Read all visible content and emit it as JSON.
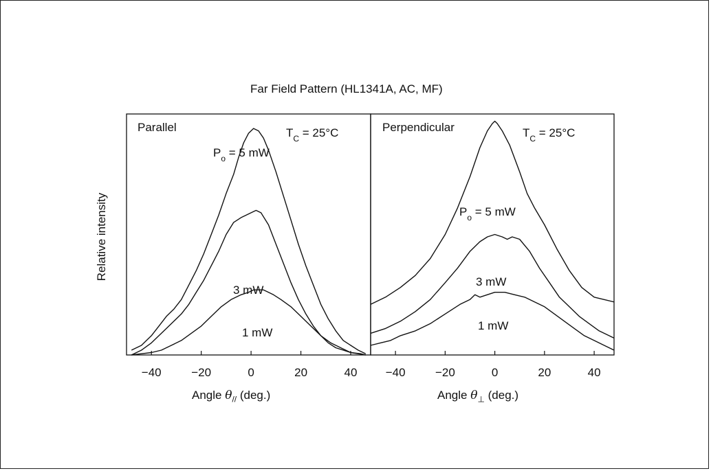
{
  "figure": {
    "title": "Far Field Pattern (HL1341A, AC, MF)",
    "ylabel": "Relative intensity"
  },
  "chart_data": [
    {
      "type": "line",
      "panel_title": "Parallel",
      "temperature_label": "T",
      "temperature_sub": "C",
      "temperature_value": " = 25°C",
      "xlabel_prefix": "Angle ",
      "xlabel_symbol": "θ",
      "xlabel_sub": "//",
      "xlabel_suffix": " (deg.)",
      "xlim": [
        -50,
        48
      ],
      "ylim": [
        0,
        1
      ],
      "xticks": [
        -40,
        -20,
        0,
        20,
        40
      ],
      "tick_labels": [
        "−40",
        "−20",
        "0",
        "20",
        "40"
      ],
      "series": [
        {
          "name": "Po = 5 mW",
          "label_main": "P",
          "label_sub": "o",
          "label_tail": " = 5 mW",
          "x": [
            -48,
            -44,
            -40,
            -37,
            -34,
            -31,
            -28,
            -25,
            -22,
            -19,
            -16,
            -13,
            -10,
            -7,
            -5,
            -3,
            -1,
            1,
            3,
            5,
            7,
            10,
            13,
            16,
            19,
            22,
            25,
            28,
            31,
            34,
            37,
            40,
            43,
            46
          ],
          "y": [
            0.02,
            0.04,
            0.08,
            0.12,
            0.16,
            0.19,
            0.23,
            0.29,
            0.35,
            0.42,
            0.5,
            0.58,
            0.67,
            0.75,
            0.82,
            0.88,
            0.92,
            0.94,
            0.93,
            0.9,
            0.85,
            0.76,
            0.66,
            0.56,
            0.46,
            0.37,
            0.29,
            0.21,
            0.15,
            0.1,
            0.06,
            0.04,
            0.02,
            0.005
          ]
        },
        {
          "name": "3 mW",
          "label_main": "3 mW",
          "x": [
            -48,
            -44,
            -40,
            -37,
            -34,
            -31,
            -28,
            -25,
            -22,
            -19,
            -16,
            -13,
            -10,
            -7,
            -4,
            -2,
            0,
            2,
            4,
            7,
            10,
            13,
            16,
            19,
            22,
            25,
            28,
            31,
            34,
            37,
            40,
            43,
            46
          ],
          "y": [
            0.0,
            0.02,
            0.05,
            0.08,
            0.11,
            0.14,
            0.17,
            0.21,
            0.26,
            0.31,
            0.37,
            0.43,
            0.5,
            0.55,
            0.57,
            0.58,
            0.59,
            0.6,
            0.59,
            0.54,
            0.46,
            0.38,
            0.3,
            0.23,
            0.17,
            0.12,
            0.08,
            0.05,
            0.03,
            0.02,
            0.01,
            0.005,
            0.0
          ]
        },
        {
          "name": "1 mW",
          "label_main": "1 mW",
          "x": [
            -48,
            -44,
            -40,
            -36,
            -32,
            -28,
            -24,
            -20,
            -16,
            -12,
            -8,
            -4,
            -1,
            1,
            3,
            5,
            7,
            9,
            12,
            16,
            20,
            24,
            28,
            32,
            36,
            40,
            44,
            46
          ],
          "y": [
            0.0,
            0.005,
            0.01,
            0.02,
            0.04,
            0.06,
            0.09,
            0.12,
            0.16,
            0.2,
            0.23,
            0.25,
            0.26,
            0.27,
            0.27,
            0.27,
            0.26,
            0.25,
            0.23,
            0.2,
            0.16,
            0.12,
            0.08,
            0.05,
            0.03,
            0.01,
            0.005,
            0.0
          ]
        }
      ]
    },
    {
      "type": "line",
      "panel_title": "Perpendicular",
      "temperature_label": "T",
      "temperature_sub": "C",
      "temperature_value": " = 25°C",
      "xlabel_prefix": "Angle ",
      "xlabel_symbol": "θ",
      "xlabel_sub": "⊥",
      "xlabel_suffix": " (deg.)",
      "xlim": [
        -50,
        48
      ],
      "ylim": [
        0,
        1
      ],
      "xticks": [
        -40,
        -20,
        0,
        20,
        40
      ],
      "tick_labels": [
        "−40",
        "−20",
        "0",
        "20",
        "40"
      ],
      "series": [
        {
          "name": "Po = 5 mW",
          "label_main": "P",
          "label_sub": "o",
          "label_tail": " = 5 mW",
          "x": [
            -50,
            -44,
            -38,
            -32,
            -26,
            -20,
            -15,
            -10,
            -6,
            -3,
            -1,
            0,
            1,
            3,
            6,
            10,
            13,
            16,
            20,
            25,
            30,
            35,
            40,
            44,
            48
          ],
          "y": [
            0.21,
            0.24,
            0.28,
            0.33,
            0.4,
            0.5,
            0.61,
            0.74,
            0.86,
            0.93,
            0.96,
            0.97,
            0.96,
            0.93,
            0.87,
            0.76,
            0.67,
            0.61,
            0.54,
            0.44,
            0.35,
            0.28,
            0.24,
            0.23,
            0.22
          ]
        },
        {
          "name": "3 mW",
          "label_main": "3 mW",
          "x": [
            -50,
            -44,
            -38,
            -32,
            -26,
            -20,
            -15,
            -10,
            -6,
            -3,
            0,
            3,
            5,
            7,
            10,
            14,
            18,
            22,
            26,
            30,
            34,
            38,
            42,
            46,
            48
          ],
          "y": [
            0.09,
            0.11,
            0.14,
            0.18,
            0.23,
            0.3,
            0.36,
            0.43,
            0.47,
            0.49,
            0.5,
            0.49,
            0.48,
            0.49,
            0.48,
            0.43,
            0.36,
            0.3,
            0.24,
            0.2,
            0.16,
            0.13,
            0.1,
            0.08,
            0.07
          ]
        },
        {
          "name": "1 mW",
          "label_main": "1 mW",
          "x": [
            -50,
            -46,
            -42,
            -38,
            -32,
            -26,
            -20,
            -14,
            -10,
            -8,
            -6,
            0,
            4,
            8,
            12,
            16,
            20,
            24,
            28,
            32,
            36,
            40,
            44,
            48
          ],
          "y": [
            0.04,
            0.05,
            0.06,
            0.08,
            0.1,
            0.13,
            0.17,
            0.21,
            0.23,
            0.25,
            0.24,
            0.26,
            0.26,
            0.25,
            0.24,
            0.22,
            0.2,
            0.17,
            0.14,
            0.11,
            0.08,
            0.06,
            0.04,
            0.02
          ]
        }
      ]
    }
  ]
}
